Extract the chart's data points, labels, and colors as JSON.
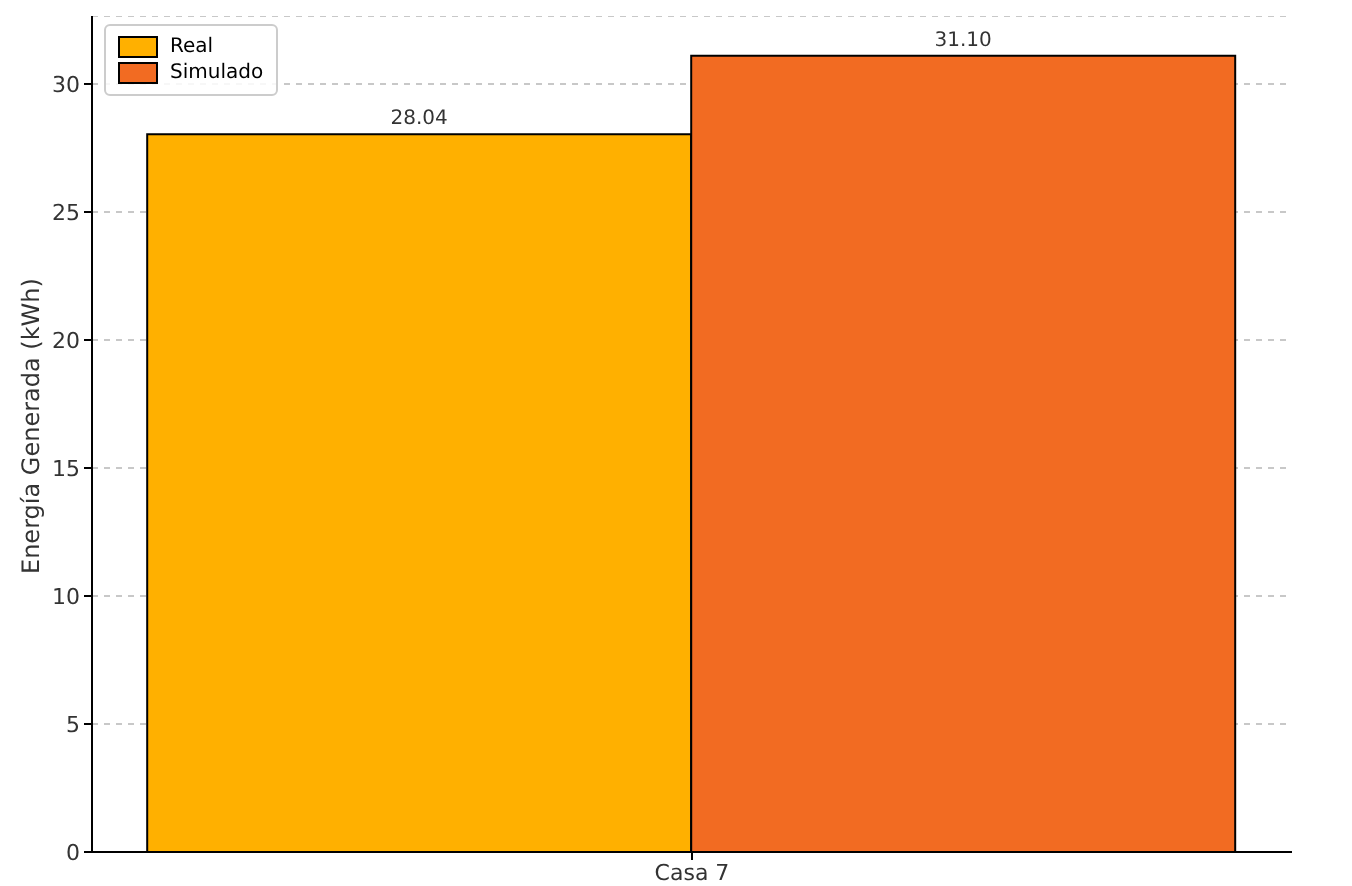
{
  "chart_data": {
    "type": "bar",
    "ylabel": "Energía Generada (kWh)",
    "categories": [
      "Casa 7"
    ],
    "series": [
      {
        "name": "Real",
        "color": "#ffb000",
        "values": [
          28.04
        ],
        "value_labels": [
          "28.04"
        ]
      },
      {
        "name": "Simulado",
        "color": "#f26b22",
        "values": [
          31.1
        ],
        "value_labels": [
          "31.10"
        ]
      }
    ],
    "ylim": [
      0,
      32.655
    ],
    "yticks": [
      0,
      5,
      10,
      15,
      20,
      25,
      30
    ],
    "grid": "y",
    "legend": "top left"
  }
}
